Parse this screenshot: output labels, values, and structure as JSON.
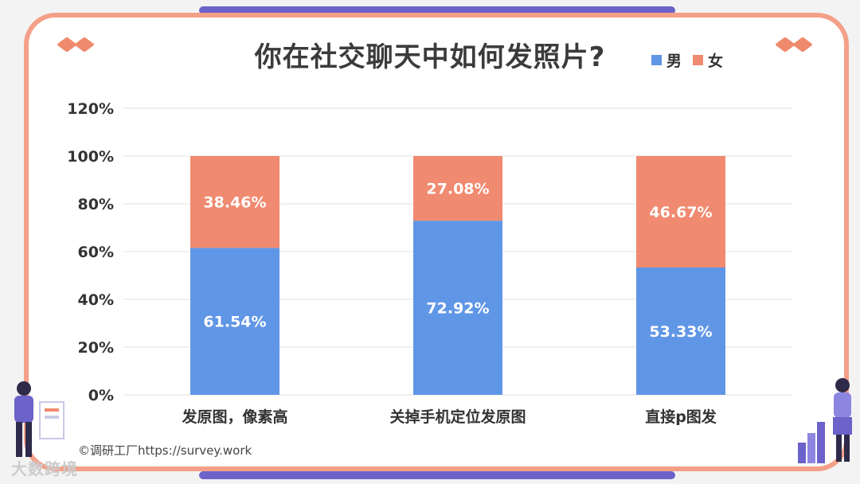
{
  "title": "你在社交聊天中如何发照片?",
  "legend": {
    "male": "男",
    "female": "女"
  },
  "colors": {
    "male": "#6096e6",
    "female": "#f08a70",
    "frame": "#f4a088",
    "accent": "#6b63c9"
  },
  "footer": "©调研工厂https://survey.work",
  "brand": "大数跨境",
  "chart_data": {
    "type": "bar",
    "stacked": true,
    "title": "你在社交聊天中如何发照片?",
    "categories": [
      "发原图，像素高",
      "关掉手机定位发原图",
      "直接p图发"
    ],
    "series": [
      {
        "name": "男",
        "values": [
          61.54,
          72.92,
          53.33
        ],
        "labels": [
          "61.54%",
          "72.92%",
          "53.33%"
        ]
      },
      {
        "name": "女",
        "values": [
          38.46,
          27.08,
          46.67
        ],
        "labels": [
          "38.46%",
          "27.08%",
          "46.67%"
        ]
      }
    ],
    "yticks": [
      "0%",
      "20%",
      "40%",
      "60%",
      "80%",
      "100%",
      "120%"
    ],
    "ylim": [
      0,
      120
    ],
    "grid": true,
    "legend_position": "top-right"
  }
}
